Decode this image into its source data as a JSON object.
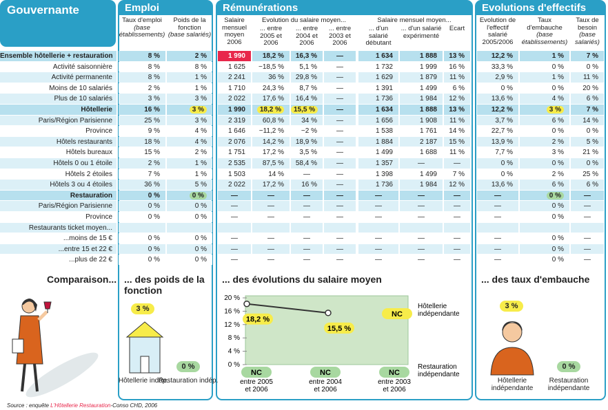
{
  "header": {
    "title": "Gouvernante",
    "groups": [
      "Emploi",
      "Rémunérations",
      "Evolutions d'effectifs"
    ],
    "subgroups": [
      "Evolution du salaire moyen...",
      "Salaire mensuel moyen..."
    ]
  },
  "columns": [
    {
      "title": "Taux d'emploi",
      "note": "(base établissements)"
    },
    {
      "title": "Poids de la fonction",
      "note": "(base salariés)"
    },
    {
      "title": "Salaire mensuel moyen 2006"
    },
    {
      "title": "... entre 2005 et 2006"
    },
    {
      "title": "... entre 2004 et 2006"
    },
    {
      "title": "... entre 2003 et 2006"
    },
    {
      "title": "... d'un salarié débutant"
    },
    {
      "title": "... d'un salarié expérimenté"
    },
    {
      "title": "Ecart"
    },
    {
      "title": "Evolution de l'effectif salarié 2005/2006"
    },
    {
      "title": "Taux d'embauche",
      "note": "(base établissements)"
    },
    {
      "title": "Taux de besoin",
      "note": "(base salariés)"
    }
  ],
  "rows": [
    {
      "label": "Ensemble hôtellerie + restauration",
      "bold": true,
      "cells": [
        "8 %",
        "2 %",
        {
          "text": "1 990",
          "highlight": "#e8274b"
        },
        "18,2 %",
        "16,3 %",
        "—",
        "1 634",
        "1 888",
        "13 %",
        "12,2 %",
        "1 %",
        "7 %"
      ]
    },
    {
      "label": "Activité saisonnière",
      "cells": [
        "8 %",
        "8 %",
        "1 625",
        "−18,5 %",
        "5,1 %",
        "—",
        "1 732",
        "1 999",
        "16 %",
        "33,3 %",
        "0 %",
        "0 %"
      ]
    },
    {
      "label": "Activité permanente",
      "cells": [
        "8 %",
        "1 %",
        "2 241",
        "36 %",
        "29,8 %",
        "—",
        "1 629",
        "1 879",
        "11 %",
        "2,9 %",
        "1 %",
        "11 %"
      ]
    },
    {
      "label": "Moins de 10 salariés",
      "cells": [
        "2 %",
        "1 %",
        "1 710",
        "24,3 %",
        "8,7 %",
        "—",
        "1 391",
        "1 499",
        "6 %",
        "0 %",
        "0 %",
        "20 %"
      ]
    },
    {
      "label": "Plus de 10 salariés",
      "cells": [
        "3 %",
        "3 %",
        "2 022",
        "17,6 %",
        "16,4 %",
        "—",
        "1 736",
        "1 984",
        "12 %",
        "13,6 %",
        "4 %",
        "6 %"
      ]
    },
    {
      "label": "Hôtellerie",
      "bold": true,
      "cells": [
        "16 %",
        {
          "text": "3 %",
          "highlight": "#f7ec4a"
        },
        "1 990",
        {
          "text": "18,2 %",
          "highlight": "#f7ec4a"
        },
        {
          "text": "15,5 %",
          "highlight": "#f7ec4a"
        },
        "—",
        "1 634",
        "1 888",
        "13 %",
        "12,2 %",
        {
          "text": "3 %",
          "highlight": "#f7ec4a"
        },
        "7 %"
      ]
    },
    {
      "label": "Paris/Région Parisienne",
      "cells": [
        "25 %",
        "3 %",
        "2 319",
        "60,8 %",
        "34 %",
        "—",
        "1 656",
        "1 908",
        "11 %",
        "3,7 %",
        "6 %",
        "14 %"
      ]
    },
    {
      "label": "Province",
      "cells": [
        "9 %",
        "4 %",
        "1 646",
        "−11,2 %",
        "−2 %",
        "—",
        "1 538",
        "1 761",
        "14 %",
        "22,7 %",
        "0 %",
        "0 %"
      ]
    },
    {
      "label": "Hôtels restaurants",
      "cells": [
        "18 %",
        "4 %",
        "2 076",
        "14,2 %",
        "18,9 %",
        "—",
        "1 884",
        "2 187",
        "15 %",
        "13,9 %",
        "2 %",
        "5 %"
      ]
    },
    {
      "label": "Hôtels bureaux",
      "cells": [
        "15 %",
        "2 %",
        "1 751",
        "17,2 %",
        "3,5 %",
        "—",
        "1 499",
        "1 688",
        "11 %",
        "7,7 %",
        "3 %",
        "21 %"
      ]
    },
    {
      "label": "Hôtels 0 ou 1 étoile",
      "cells": [
        "2 %",
        "1 %",
        "2 535",
        "87,5 %",
        "58,4 %",
        "—",
        "1 357",
        "—",
        "—",
        "0 %",
        "0 %",
        "0 %"
      ]
    },
    {
      "label": "Hôtels 2 étoiles",
      "cells": [
        "7 %",
        "1 %",
        "1 503",
        "14 %",
        "—",
        "—",
        "1 398",
        "1 499",
        "7 %",
        "0 %",
        "2 %",
        "25 %"
      ]
    },
    {
      "label": "Hôtels 3 ou 4 étoiles",
      "cells": [
        "36 %",
        "5 %",
        "2 022",
        "17,2 %",
        "16 %",
        "—",
        "1 736",
        "1 984",
        "12 %",
        "13,6 %",
        "6 %",
        "6 %"
      ]
    },
    {
      "label": "Restauration",
      "bold": true,
      "cells": [
        "0 %",
        {
          "text": "0 %",
          "highlight": "#a8d8a0"
        },
        "—",
        "—",
        "—",
        "—",
        "—",
        "—",
        "—",
        "—",
        {
          "text": "0 %",
          "highlight": "#a8d8a0"
        },
        "—"
      ]
    },
    {
      "label": "Paris/Région Parisienne",
      "cells": [
        "0 %",
        "0 %",
        "—",
        "—",
        "—",
        "—",
        "—",
        "—",
        "—",
        "—",
        "0 %",
        "—"
      ]
    },
    {
      "label": "Province",
      "cells": [
        "0 %",
        "0 %",
        "—",
        "—",
        "—",
        "—",
        "—",
        "—",
        "—",
        "—",
        "0 %",
        "—"
      ]
    },
    {
      "label": "Restaurants ticket moyen..."
    },
    {
      "label": "...moins de 15 €",
      "cells": [
        "0 %",
        "0 %",
        "—",
        "—",
        "—",
        "—",
        "—",
        "—",
        "—",
        "—",
        "0 %",
        "—"
      ]
    },
    {
      "label": "...entre 15 et 22 €",
      "cells": [
        "0 %",
        "0 %",
        "—",
        "—",
        "—",
        "—",
        "—",
        "—",
        "—",
        "—",
        "0 %",
        "—"
      ]
    },
    {
      "label": "...plus de 22 €",
      "cells": [
        "0 %",
        "0 %",
        "—",
        "—",
        "—",
        "—",
        "—",
        "—",
        "—",
        "—",
        "0 %",
        "—"
      ]
    }
  ],
  "comparisons": {
    "title": "Comparaison...",
    "weight": {
      "title": "... des poids de la fonction",
      "items": [
        {
          "label": "Hôtellerie indép.",
          "value": 3,
          "value_label": "3 %",
          "color": "#f7ec4a"
        },
        {
          "label": "Restauration indép.",
          "value": 0,
          "value_label": "0 %",
          "color": "#a8d8a0"
        }
      ]
    },
    "salary": {
      "type": "line",
      "title": "... des évolutions du salaire moyen",
      "categories": [
        "entre 2005 et 2006",
        "entre 2004 et 2006",
        "entre 2003 et 2006"
      ],
      "ylim": [
        0,
        20
      ],
      "yticks": [
        {
          "value": 0,
          "label": "0 %"
        },
        {
          "value": 4,
          "label": "4 %"
        },
        {
          "value": 8,
          "label": "8 %"
        },
        {
          "value": 12,
          "label": "12 %"
        },
        {
          "value": 16,
          "label": "16 %"
        },
        {
          "value": 20,
          "label": "20 %"
        }
      ],
      "series": [
        {
          "name": "Hôtellerie indépendante",
          "color": "#f7ec4a",
          "values": [
            18.2,
            15.5,
            null
          ],
          "value_labels": [
            "18,2 %",
            "15,5 %",
            "NC"
          ]
        },
        {
          "name": "Restauration indépendante",
          "color": "#a8d8a0",
          "values": [
            null,
            null,
            null
          ],
          "value_labels": [
            "NC",
            "NC",
            "NC"
          ]
        }
      ]
    },
    "hiring": {
      "title": "... des taux d'embauche",
      "items": [
        {
          "label": "Hôtellerie indépendante",
          "value": 3,
          "value_label": "3 %",
          "color": "#f7ec4a"
        },
        {
          "label": "Restauration indépendante",
          "value": 0,
          "value_label": "0 %",
          "color": "#a8d8a0"
        }
      ]
    }
  },
  "source": [
    "Source : enquête ",
    "L'Hôtellerie Restauration",
    "-Conso CHD, 2006"
  ]
}
